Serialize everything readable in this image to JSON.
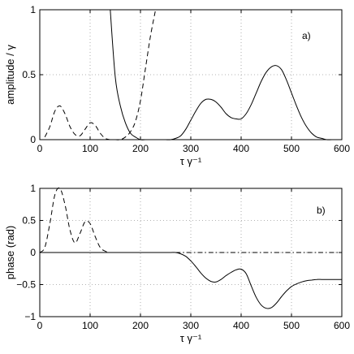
{
  "chart_data": [
    {
      "type": "line",
      "panel_label": "a)",
      "xlabel": "τ γ⁻¹",
      "ylabel": "amplitude / γ",
      "xlim": [
        0,
        600
      ],
      "ylim": [
        0,
        1
      ],
      "xticks": [
        0,
        100,
        200,
        300,
        400,
        500,
        600
      ],
      "yticks": [
        0,
        0.5,
        1
      ],
      "ytick_labels": [
        "0",
        "0.5",
        "1"
      ],
      "grid": true,
      "series": [
        {
          "style": "solid",
          "x": [
            0,
            10,
            20,
            30,
            40,
            50,
            60,
            70,
            80,
            90,
            100,
            110,
            120,
            130,
            140,
            150,
            160,
            170,
            180,
            190,
            200,
            210,
            220,
            230,
            240,
            250,
            260,
            270,
            280,
            290,
            300,
            310,
            320,
            330,
            340,
            350,
            360,
            370,
            380,
            390,
            400,
            410,
            420,
            430,
            440,
            450,
            460,
            470,
            480,
            490,
            500,
            510,
            520,
            530,
            540,
            550,
            560,
            570,
            580,
            590,
            600
          ],
          "y": [
            null,
            null,
            null,
            null,
            null,
            null,
            null,
            null,
            null,
            null,
            null,
            null,
            null,
            null,
            1.0,
            0.48,
            0.26,
            0.13,
            0.05,
            0.02,
            0.0,
            0.0,
            0.0,
            0.0,
            0.0,
            0.0,
            0.0,
            0.01,
            0.03,
            0.08,
            0.15,
            0.22,
            0.28,
            0.31,
            0.31,
            0.29,
            0.25,
            0.2,
            0.17,
            0.16,
            0.16,
            0.2,
            0.27,
            0.36,
            0.45,
            0.52,
            0.56,
            0.57,
            0.54,
            0.46,
            0.36,
            0.26,
            0.17,
            0.1,
            0.05,
            0.02,
            0.01,
            0.0,
            0.0,
            0.0,
            0.0
          ]
        },
        {
          "style": "dashed",
          "x": [
            10,
            20,
            30,
            40,
            50,
            60,
            70,
            80,
            90,
            100,
            110,
            120,
            130,
            140,
            150,
            160,
            170,
            180,
            190,
            200,
            210,
            220,
            230
          ],
          "y": [
            0.02,
            0.1,
            0.22,
            0.26,
            0.2,
            0.1,
            0.04,
            0.03,
            0.08,
            0.13,
            0.11,
            0.05,
            0.01,
            0.0,
            0.0,
            0.0,
            0.02,
            0.06,
            0.14,
            0.3,
            0.55,
            0.8,
            1.0
          ]
        }
      ]
    },
    {
      "type": "line",
      "panel_label": "b)",
      "xlabel": "τ γ⁻¹",
      "ylabel": "phase (rad)",
      "xlim": [
        0,
        600
      ],
      "ylim": [
        -1,
        1
      ],
      "xticks": [
        0,
        100,
        200,
        300,
        400,
        500,
        600
      ],
      "yticks": [
        -1,
        -0.5,
        0,
        0.5,
        1
      ],
      "ytick_labels": [
        "−1",
        "−0.5",
        "0",
        "0.5",
        "1"
      ],
      "grid": true,
      "series": [
        {
          "style": "solid",
          "x": [
            0,
            20,
            40,
            60,
            80,
            100,
            120,
            140,
            160,
            180,
            200,
            220,
            240,
            260,
            270,
            280,
            290,
            300,
            310,
            320,
            330,
            340,
            350,
            360,
            370,
            380,
            390,
            400,
            410,
            420,
            430,
            440,
            450,
            460,
            470,
            480,
            490,
            500,
            510,
            520,
            530,
            540,
            550,
            560,
            570,
            580,
            590,
            600
          ],
          "y": [
            0,
            0,
            0,
            0,
            0,
            0,
            0,
            0,
            0,
            0,
            0,
            0,
            0,
            0,
            0,
            -0.02,
            -0.06,
            -0.13,
            -0.22,
            -0.32,
            -0.4,
            -0.45,
            -0.46,
            -0.42,
            -0.36,
            -0.31,
            -0.27,
            -0.26,
            -0.33,
            -0.52,
            -0.7,
            -0.82,
            -0.87,
            -0.86,
            -0.79,
            -0.69,
            -0.6,
            -0.53,
            -0.49,
            -0.46,
            -0.44,
            -0.43,
            -0.42,
            -0.42,
            -0.42,
            -0.42,
            -0.42,
            -0.42
          ]
        },
        {
          "style": "dashed",
          "x": [
            0,
            10,
            20,
            30,
            40,
            50,
            60,
            70,
            80,
            90,
            100,
            110,
            120,
            130,
            140
          ],
          "y": [
            0.0,
            0.08,
            0.45,
            0.9,
            1.0,
            0.75,
            0.35,
            0.15,
            0.3,
            0.48,
            0.45,
            0.25,
            0.08,
            0.02,
            0.0
          ]
        },
        {
          "style": "dashdot",
          "x": [
            270,
            600
          ],
          "y": [
            0,
            0
          ]
        }
      ]
    }
  ]
}
